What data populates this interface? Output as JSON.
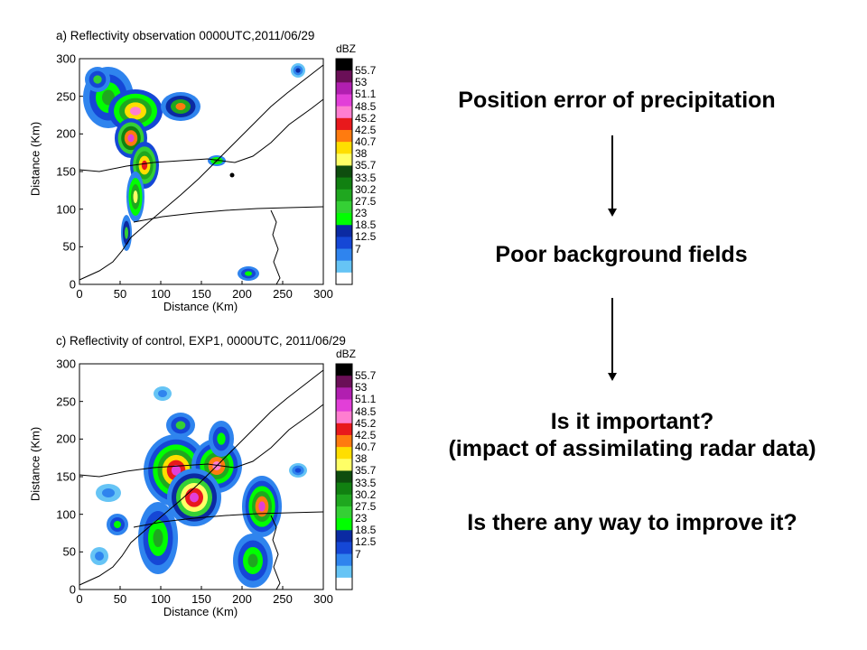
{
  "panels": [
    {
      "title": "a) Reflectivity observation  0000UTC,2011/06/29",
      "xlabel": "Distance (Km)",
      "ylabel": "Distance (Km)",
      "xticks": [
        "0",
        "50",
        "100",
        "150",
        "200",
        "250",
        "300"
      ],
      "yticks": [
        "0",
        "50",
        "100",
        "150",
        "200",
        "250",
        "300"
      ],
      "colorbar_unit": "dBZ",
      "colorbar_levels": [
        "55.7",
        "53",
        "51.1",
        "48.5",
        "45.2",
        "42.5",
        "40.7",
        "38",
        "35.7",
        "33.5",
        "30.2",
        "27.5",
        "23",
        "18.5",
        "12.5",
        "7"
      ]
    },
    {
      "title": "c) Reflectivity of control, EXP1, 0000UTC, 2011/06/29",
      "xlabel": "Distance (Km)",
      "ylabel": "Distance (Km)",
      "xticks": [
        "0",
        "50",
        "100",
        "150",
        "200",
        "250",
        "300"
      ],
      "yticks": [
        "0",
        "50",
        "100",
        "150",
        "200",
        "250",
        "300"
      ],
      "colorbar_unit": "dBZ",
      "colorbar_levels": [
        "55.7",
        "53",
        "51.1",
        "48.5",
        "45.2",
        "42.5",
        "40.7",
        "38",
        "35.7",
        "33.5",
        "30.2",
        "27.5",
        "23",
        "18.5",
        "12.5",
        "7"
      ]
    }
  ],
  "colorbar_colors": [
    "#000000",
    "#6a0f57",
    "#b11fb0",
    "#e23fd8",
    "#ff7ed0",
    "#e8191c",
    "#ff7b0f",
    "#ffde00",
    "#ffff66",
    "#0e4d0e",
    "#118011",
    "#1fa71f",
    "#35d035",
    "#00ff00",
    "#0b2aa2",
    "#1547d6",
    "#2f84ee",
    "#66c4f5",
    "#ffffff"
  ],
  "flow": {
    "step1": "Position error of precipitation",
    "step2": "Poor background fields",
    "step3_line1": "Is it important?",
    "step3_line2": "(impact of assimilating radar data)",
    "step4": "Is there any way to improve it?"
  }
}
